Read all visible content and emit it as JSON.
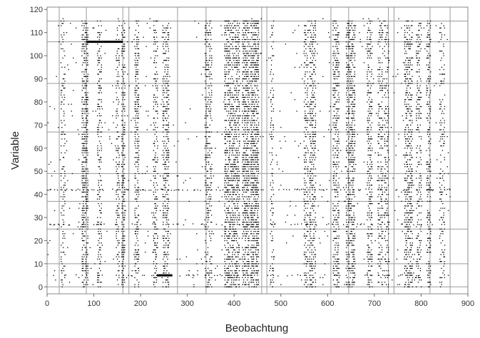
{
  "chart_data": {
    "type": "scatter",
    "title": "",
    "xlabel": "Beobachtung",
    "ylabel": "Variable",
    "xlim": [
      0,
      900
    ],
    "ylim": [
      -3,
      121
    ],
    "x_ticks": [
      0,
      100,
      200,
      300,
      400,
      500,
      600,
      700,
      800,
      900
    ],
    "y_ticks": [
      0,
      10,
      20,
      30,
      40,
      50,
      60,
      70,
      80,
      90,
      100,
      110,
      120
    ],
    "grid_x": [
      0,
      26,
      84,
      162,
      175,
      279,
      340,
      459,
      470,
      607,
      645,
      730,
      742,
      819,
      862
    ],
    "grid_y": [
      0,
      10,
      25,
      37,
      49,
      67,
      88,
      106,
      115
    ],
    "grid": true,
    "legend": "none",
    "point_color": "#000000",
    "highlight_segments": [
      {
        "x": [
          84,
          162
        ],
        "y": 106
      },
      {
        "x": [
          235,
          268
        ],
        "y": 5
      }
    ],
    "dense_columns": [
      {
        "x": [
          30,
          38
        ],
        "y": [
          0,
          115
        ],
        "density": 0.22
      },
      {
        "x": [
          75,
          88
        ],
        "y": [
          0,
          115
        ],
        "density": 0.45
      },
      {
        "x": [
          108,
          116
        ],
        "y": [
          0,
          115
        ],
        "density": 0.3
      },
      {
        "x": [
          148,
          155
        ],
        "y": [
          0,
          115
        ],
        "density": 0.3
      },
      {
        "x": [
          160,
          166
        ],
        "y": [
          0,
          115
        ],
        "density": 0.45
      },
      {
        "x": [
          188,
          197
        ],
        "y": [
          0,
          115
        ],
        "density": 0.35
      },
      {
        "x": [
          228,
          236
        ],
        "y": [
          0,
          115
        ],
        "density": 0.35
      },
      {
        "x": [
          248,
          260
        ],
        "y": [
          0,
          115
        ],
        "density": 0.4
      },
      {
        "x": [
          338,
          352
        ],
        "y": [
          0,
          115
        ],
        "density": 0.3
      },
      {
        "x": [
          380,
          392
        ],
        "y": [
          0,
          115
        ],
        "density": 0.45
      },
      {
        "x": [
          395,
          412
        ],
        "y": [
          0,
          115
        ],
        "density": 0.45
      },
      {
        "x": [
          418,
          432
        ],
        "y": [
          0,
          115
        ],
        "density": 0.5
      },
      {
        "x": [
          436,
          452
        ],
        "y": [
          0,
          115
        ],
        "density": 0.55
      },
      {
        "x": [
          478,
          485
        ],
        "y": [
          0,
          115
        ],
        "density": 0.2
      },
      {
        "x": [
          550,
          558
        ],
        "y": [
          0,
          115
        ],
        "density": 0.3
      },
      {
        "x": [
          562,
          575
        ],
        "y": [
          0,
          115
        ],
        "density": 0.4
      },
      {
        "x": [
          612,
          624
        ],
        "y": [
          0,
          115
        ],
        "density": 0.4
      },
      {
        "x": [
          640,
          658
        ],
        "y": [
          0,
          115
        ],
        "density": 0.45
      },
      {
        "x": [
          685,
          695
        ],
        "y": [
          0,
          115
        ],
        "density": 0.35
      },
      {
        "x": [
          708,
          718
        ],
        "y": [
          0,
          115
        ],
        "density": 0.3
      },
      {
        "x": [
          722,
          730
        ],
        "y": [
          0,
          115
        ],
        "density": 0.3
      },
      {
        "x": [
          765,
          782
        ],
        "y": [
          0,
          115
        ],
        "density": 0.4
      },
      {
        "x": [
          790,
          800
        ],
        "y": [
          0,
          115
        ],
        "density": 0.3
      },
      {
        "x": [
          812,
          820
        ],
        "y": [
          0,
          115
        ],
        "density": 0.3
      },
      {
        "x": [
          840,
          850
        ],
        "y": [
          0,
          115
        ],
        "density": 0.2
      }
    ],
    "dense_rows": [
      {
        "y": 42,
        "x": [
          0,
          862
        ],
        "density": 0.25
      },
      {
        "y": 27,
        "x": [
          0,
          862
        ],
        "density": 0.2
      },
      {
        "y": 5,
        "x": [
          0,
          862
        ],
        "density": 0.15
      }
    ],
    "sparse_background_density": 0.012,
    "random_seed": 17
  }
}
